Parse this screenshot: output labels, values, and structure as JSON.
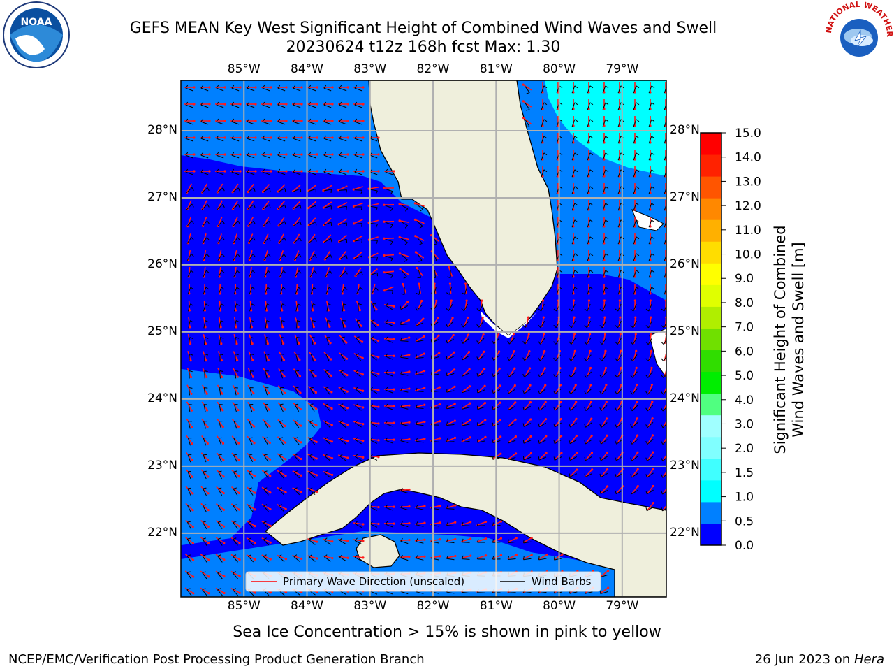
{
  "title": {
    "line1": "GEFS MEAN Key West Significant Height of Combined Wind Waves and Swell",
    "line2": "20230624 t12z 168h fcst   Max: 1.30"
  },
  "logos": {
    "left": {
      "name": "noaa-logo",
      "text": "NOAA"
    },
    "right": {
      "name": "nws-logo",
      "text": "NATIONAL WEATHER SERVICE"
    }
  },
  "map": {
    "lon_labels": [
      "85°W",
      "84°W",
      "83°W",
      "82°W",
      "81°W",
      "80°W",
      "79°W"
    ],
    "lat_labels": [
      "28°N",
      "27°N",
      "26°N",
      "25°N",
      "24°N",
      "23°N",
      "22°N"
    ],
    "lon_range": [
      -86,
      -78.3
    ],
    "lat_range": [
      21.05,
      28.75
    ],
    "gridlines": true
  },
  "legend": {
    "items": [
      {
        "label": "Primary Wave Direction (unscaled)",
        "color": "#ff0000"
      },
      {
        "label": "Wind Barbs",
        "color": "#000000"
      }
    ]
  },
  "colorbar": {
    "label_line1": "Significant Height of Combined",
    "label_line2": "Wind Waves and Swell [m]",
    "ticks": [
      "15.0",
      "14.0",
      "13.0",
      "12.0",
      "11.0",
      "10.0",
      "9.0",
      "8.0",
      "7.0",
      "6.0",
      "5.0",
      "4.0",
      "3.0",
      "2.0",
      "1.5",
      "1.0",
      "0.5",
      "0.0"
    ],
    "colors": [
      "#0000ff",
      "#0080ff",
      "#00ffff",
      "#40ffff",
      "#80ffff",
      "#a0ffff",
      "#50ff80",
      "#00ee00",
      "#30dd00",
      "#70e000",
      "#b0ee00",
      "#e0ff00",
      "#ffff00",
      "#ffdd00",
      "#ffb000",
      "#ff8800",
      "#ff5500",
      "#ff2200",
      "#ff0000"
    ]
  },
  "notes": {
    "sea_ice": "Sea Ice Concentration > 15% is shown in pink to yellow"
  },
  "footer": {
    "left": "NCEP/EMC/Verification Post Processing Product Generation Branch",
    "right_prefix": "26 Jun 2023 on ",
    "right_host": "Hera"
  }
}
